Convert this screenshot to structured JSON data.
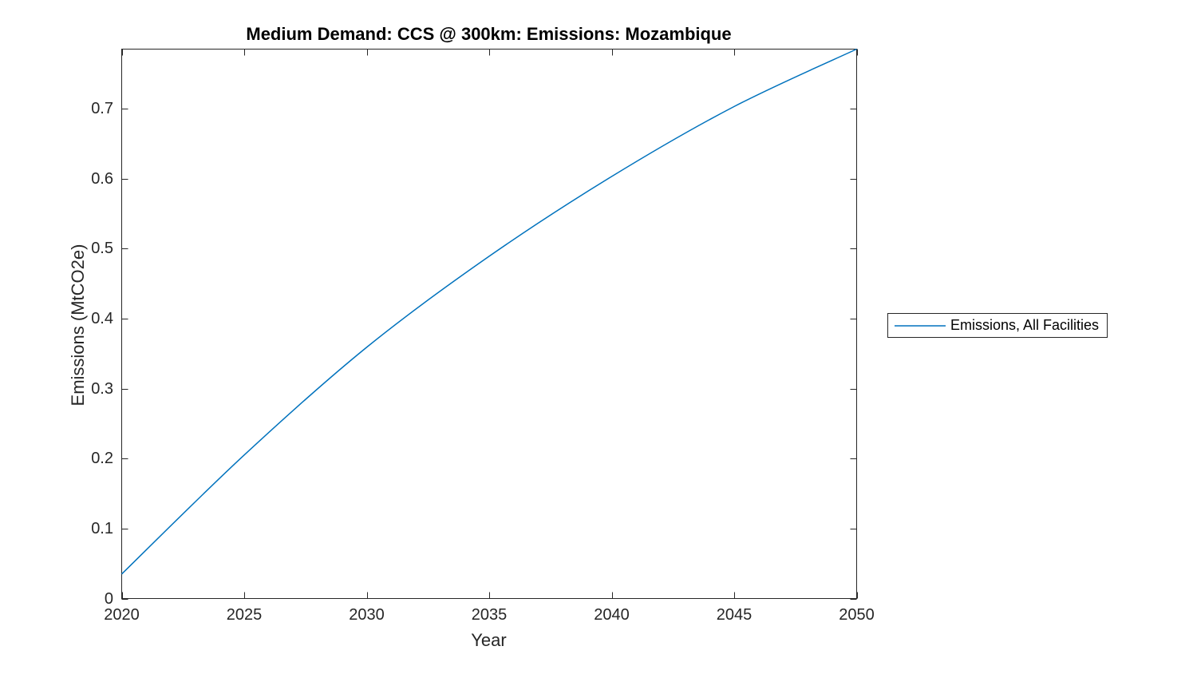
{
  "chart_data": {
    "type": "line",
    "title": "Medium Demand: CCS @ 300km: Emissions: Mozambique",
    "xlabel": "Year",
    "ylabel": "Emissions (MtCO2e)",
    "xlim": [
      2020,
      2050
    ],
    "ylim": [
      0,
      0.785
    ],
    "grid": false,
    "x_ticks": [
      2020,
      2025,
      2030,
      2035,
      2040,
      2045,
      2050
    ],
    "x_tick_labels": [
      "2020",
      "2025",
      "2030",
      "2035",
      "2040",
      "2045",
      "2050"
    ],
    "y_ticks": [
      0,
      0.1,
      0.2,
      0.3,
      0.4,
      0.5,
      0.6,
      0.7
    ],
    "y_tick_labels": [
      "0",
      "0.1",
      "0.2",
      "0.3",
      "0.4",
      "0.5",
      "0.6",
      "0.7"
    ],
    "series": [
      {
        "name": "Emissions, All Facilities",
        "color": "#0072BD",
        "x": [
          2020,
          2025,
          2030,
          2035,
          2040,
          2045,
          2050
        ],
        "y": [
          0.035,
          0.205,
          0.359,
          0.489,
          0.603,
          0.703,
          0.785
        ]
      }
    ],
    "legend": {
      "position": "right-outside",
      "entries": [
        {
          "label": "Emissions, All Facilities",
          "color": "#0072BD"
        }
      ]
    }
  },
  "colors": {
    "line": "#0072BD",
    "axis": "#262626",
    "tick_label": "#262626",
    "title": "#000000",
    "background": "#ffffff"
  }
}
